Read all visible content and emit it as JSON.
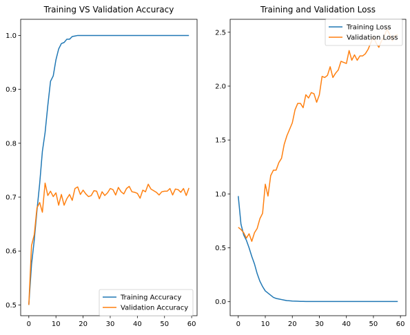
{
  "chart_data": [
    {
      "type": "line",
      "title": "Training VS Validation Accuracy",
      "xlabel": "",
      "ylabel": "",
      "xlim": [
        -3,
        62
      ],
      "ylim": [
        0.48,
        1.03
      ],
      "xticks": [
        0,
        10,
        20,
        30,
        40,
        50,
        60
      ],
      "yticks": [
        0.5,
        0.6,
        0.7,
        0.8,
        0.9,
        1.0
      ],
      "ytick_labels": [
        "0.5",
        "0.6",
        "0.7",
        "0.8",
        "0.9",
        "1.0"
      ],
      "legend_position": "lower-right",
      "grid": false,
      "x": [
        0,
        1,
        2,
        3,
        4,
        5,
        6,
        7,
        8,
        9,
        10,
        11,
        12,
        13,
        14,
        15,
        16,
        17,
        18,
        19,
        20,
        21,
        22,
        23,
        24,
        25,
        26,
        27,
        28,
        29,
        30,
        31,
        32,
        33,
        34,
        35,
        36,
        37,
        38,
        39,
        40,
        41,
        42,
        43,
        44,
        45,
        46,
        47,
        48,
        49,
        50,
        51,
        52,
        53,
        54,
        55,
        56,
        57,
        58,
        59
      ],
      "series": [
        {
          "name": "Training Accuracy",
          "color": "#1f77b4",
          "values": [
            0.5,
            0.575,
            0.62,
            0.675,
            0.725,
            0.785,
            0.82,
            0.87,
            0.915,
            0.925,
            0.955,
            0.975,
            0.985,
            0.987,
            0.993,
            0.993,
            0.998,
            0.999,
            1.0,
            1.0,
            1.0,
            1.0,
            1.0,
            1.0,
            1.0,
            1.0,
            1.0,
            1.0,
            1.0,
            1.0,
            1.0,
            1.0,
            1.0,
            1.0,
            1.0,
            1.0,
            1.0,
            1.0,
            1.0,
            1.0,
            1.0,
            1.0,
            1.0,
            1.0,
            1.0,
            1.0,
            1.0,
            1.0,
            1.0,
            1.0,
            1.0,
            1.0,
            1.0,
            1.0,
            1.0,
            1.0,
            1.0,
            1.0,
            1.0,
            1.0
          ]
        },
        {
          "name": "Validation Accuracy",
          "color": "#ff7f0e",
          "values": [
            0.5,
            0.61,
            0.63,
            0.68,
            0.69,
            0.672,
            0.726,
            0.703,
            0.711,
            0.701,
            0.708,
            0.685,
            0.705,
            0.685,
            0.697,
            0.705,
            0.694,
            0.716,
            0.719,
            0.705,
            0.713,
            0.706,
            0.701,
            0.703,
            0.712,
            0.711,
            0.697,
            0.71,
            0.703,
            0.708,
            0.716,
            0.714,
            0.704,
            0.718,
            0.71,
            0.706,
            0.716,
            0.72,
            0.71,
            0.709,
            0.707,
            0.698,
            0.713,
            0.71,
            0.724,
            0.715,
            0.712,
            0.709,
            0.704,
            0.71,
            0.711,
            0.711,
            0.716,
            0.704,
            0.715,
            0.714,
            0.709,
            0.716,
            0.703,
            0.717
          ]
        }
      ]
    },
    {
      "type": "line",
      "title": "Training and Validation Loss",
      "xlabel": "",
      "ylabel": "",
      "xlim": [
        -3,
        62
      ],
      "ylim": [
        -0.13,
        2.62
      ],
      "xticks": [
        0,
        10,
        20,
        30,
        40,
        50,
        60
      ],
      "yticks": [
        0.0,
        0.5,
        1.0,
        1.5,
        2.0,
        2.5
      ],
      "ytick_labels": [
        "0.0",
        "0.5",
        "1.0",
        "1.5",
        "2.0",
        "2.5"
      ],
      "legend_position": "top-right",
      "grid": false,
      "x": [
        0,
        1,
        2,
        3,
        4,
        5,
        6,
        7,
        8,
        9,
        10,
        11,
        12,
        13,
        14,
        15,
        16,
        17,
        18,
        19,
        20,
        21,
        22,
        23,
        24,
        25,
        26,
        27,
        28,
        29,
        30,
        31,
        32,
        33,
        34,
        35,
        36,
        37,
        38,
        39,
        40,
        41,
        42,
        43,
        44,
        45,
        46,
        47,
        48,
        49,
        50,
        51,
        52,
        53,
        54,
        55,
        56,
        57,
        58,
        59
      ],
      "series": [
        {
          "name": "Training Loss",
          "color": "#1f77b4",
          "values": [
            0.98,
            0.72,
            0.62,
            0.57,
            0.5,
            0.42,
            0.35,
            0.26,
            0.19,
            0.14,
            0.1,
            0.08,
            0.06,
            0.04,
            0.03,
            0.025,
            0.02,
            0.015,
            0.01,
            0.008,
            0.006,
            0.005,
            0.004,
            0.003,
            0.003,
            0.002,
            0.002,
            0.002,
            0.002,
            0.002,
            0.002,
            0.002,
            0.002,
            0.002,
            0.002,
            0.002,
            0.002,
            0.002,
            0.002,
            0.002,
            0.002,
            0.002,
            0.002,
            0.002,
            0.002,
            0.002,
            0.002,
            0.002,
            0.002,
            0.002,
            0.002,
            0.002,
            0.002,
            0.002,
            0.002,
            0.002,
            0.002,
            0.002,
            0.002,
            0.002
          ]
        },
        {
          "name": "Validation Loss",
          "color": "#ff7f0e",
          "values": [
            0.69,
            0.67,
            0.64,
            0.59,
            0.63,
            0.56,
            0.64,
            0.68,
            0.77,
            0.82,
            1.09,
            0.98,
            1.17,
            1.22,
            1.22,
            1.29,
            1.33,
            1.46,
            1.54,
            1.6,
            1.66,
            1.78,
            1.84,
            1.84,
            1.8,
            1.92,
            1.89,
            1.94,
            1.93,
            1.85,
            1.92,
            2.09,
            2.08,
            2.1,
            2.18,
            2.08,
            2.12,
            2.15,
            2.23,
            2.22,
            2.21,
            2.33,
            2.24,
            2.29,
            2.24,
            2.28,
            2.28,
            2.3,
            2.34,
            2.4,
            2.46,
            2.4,
            2.36,
            2.42,
            2.46,
            2.53,
            2.48,
            2.42,
            2.47,
            2.48
          ]
        }
      ]
    }
  ]
}
